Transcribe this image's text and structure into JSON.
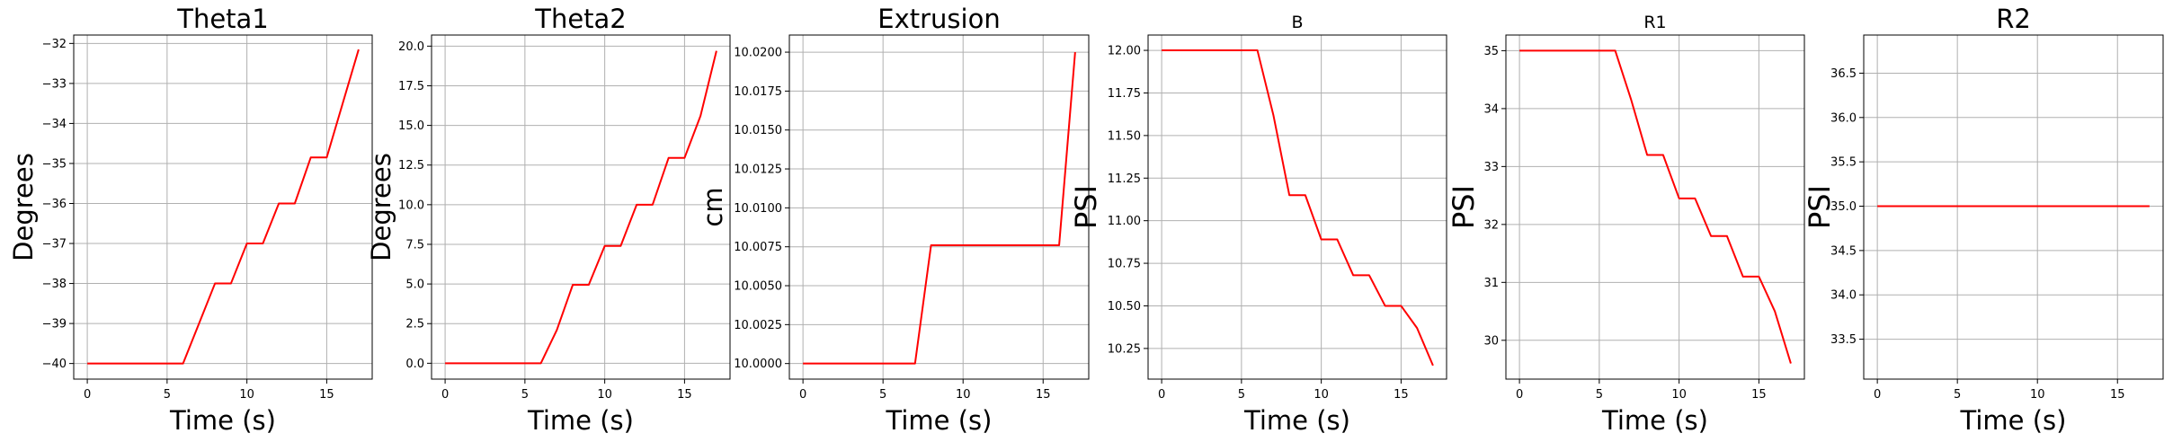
{
  "figure": {
    "background": "#ffffff",
    "line_color": "#ff0000",
    "grid_color": "#b0b0b0",
    "axes_color": "#000000"
  },
  "chart_data": [
    {
      "type": "line",
      "title": "Theta1",
      "xlabel": "Time (s)",
      "ylabel": "Degrees",
      "grid": true,
      "xlim": [
        -0.85,
        17.85
      ],
      "ylim": [
        -40.39,
        -31.79
      ],
      "xticks": [
        0,
        5,
        10,
        15
      ],
      "yticks": [
        -40,
        -39,
        -38,
        -37,
        -36,
        -35,
        -34,
        -33,
        -32
      ],
      "ytick_labels": [
        "−40",
        "−39",
        "−38",
        "−37",
        "−36",
        "−35",
        "−34",
        "−33",
        "−32"
      ],
      "series": [
        {
          "x": [
            0,
            1,
            2,
            3,
            4,
            5,
            6,
            7,
            8,
            9,
            10,
            11,
            12,
            13,
            14,
            15,
            16,
            17
          ],
          "y": [
            -40,
            -40,
            -40,
            -40,
            -40,
            -40,
            -40,
            -39,
            -38,
            -38,
            -37,
            -37,
            -36,
            -36,
            -34.85,
            -34.85,
            -33.5,
            -32.15
          ]
        }
      ]
    },
    {
      "type": "line",
      "title": "Theta2",
      "xlabel": "Time (s)",
      "ylabel": "Degrees",
      "grid": true,
      "xlim": [
        -0.85,
        17.85
      ],
      "ylim": [
        -1.0,
        20.7
      ],
      "xticks": [
        0,
        5,
        10,
        15
      ],
      "yticks": [
        0,
        2.5,
        5,
        7.5,
        10,
        12.5,
        15,
        17.5,
        20
      ],
      "ytick_labels": [
        "0.0",
        "2.5",
        "5.0",
        "7.5",
        "10.0",
        "12.5",
        "15.0",
        "17.5",
        "20.0"
      ],
      "series": [
        {
          "x": [
            0,
            1,
            2,
            3,
            4,
            5,
            6,
            7,
            8,
            9,
            10,
            11,
            12,
            13,
            14,
            15,
            16,
            17
          ],
          "y": [
            0,
            0,
            0,
            0,
            0,
            0,
            0,
            2.1,
            4.95,
            4.95,
            7.4,
            7.4,
            10.0,
            10.0,
            12.95,
            12.95,
            15.6,
            19.7
          ]
        }
      ]
    },
    {
      "type": "line",
      "title": "Extrusion",
      "xlabel": "Time (s)",
      "ylabel": "cm",
      "grid": true,
      "xlim": [
        -0.85,
        17.85
      ],
      "ylim": [
        9.999,
        10.0211
      ],
      "xticks": [
        0,
        5,
        10,
        15
      ],
      "yticks": [
        10.0,
        10.0025,
        10.005,
        10.0075,
        10.01,
        10.0125,
        10.015,
        10.0175,
        10.02
      ],
      "ytick_labels": [
        "10.0000",
        "10.0025",
        "10.0050",
        "10.0075",
        "10.0100",
        "10.0125",
        "10.0150",
        "10.0175",
        "10.0200"
      ],
      "series": [
        {
          "x": [
            0,
            1,
            2,
            3,
            4,
            5,
            6,
            7,
            8,
            9,
            10,
            11,
            12,
            13,
            14,
            15,
            16,
            17
          ],
          "y": [
            10.0,
            10.0,
            10.0,
            10.0,
            10.0,
            10.0,
            10.0,
            10.0,
            10.0076,
            10.0076,
            10.0076,
            10.0076,
            10.0076,
            10.0076,
            10.0076,
            10.0076,
            10.0076,
            10.02
          ]
        }
      ]
    },
    {
      "type": "line",
      "title": "B",
      "xlabel": "Time (s)",
      "ylabel": "PSI",
      "grid": true,
      "xlim": [
        -0.85,
        17.85
      ],
      "ylim": [
        10.07,
        12.09
      ],
      "xticks": [
        0,
        5,
        10,
        15
      ],
      "yticks": [
        10.25,
        10.5,
        10.75,
        11.0,
        11.25,
        11.5,
        11.75,
        12.0
      ],
      "ytick_labels": [
        "10.25",
        "10.50",
        "10.75",
        "11.00",
        "11.25",
        "11.50",
        "11.75",
        "12.00"
      ],
      "series": [
        {
          "x": [
            0,
            1,
            2,
            3,
            4,
            5,
            6,
            7,
            8,
            9,
            10,
            11,
            12,
            13,
            14,
            15,
            16,
            17
          ],
          "y": [
            12.0,
            12.0,
            12.0,
            12.0,
            12.0,
            12.0,
            12.0,
            11.62,
            11.15,
            11.15,
            10.89,
            10.89,
            10.68,
            10.68,
            10.5,
            10.5,
            10.37,
            10.15
          ]
        }
      ]
    },
    {
      "type": "line",
      "title": "R1",
      "xlabel": "Time (s)",
      "ylabel": "PSI",
      "grid": true,
      "xlim": [
        -0.85,
        17.85
      ],
      "ylim": [
        29.33,
        35.27
      ],
      "xticks": [
        0,
        5,
        10,
        15
      ],
      "yticks": [
        30,
        31,
        32,
        33,
        34,
        35
      ],
      "ytick_labels": [
        "30",
        "31",
        "32",
        "33",
        "34",
        "35"
      ],
      "series": [
        {
          "x": [
            0,
            1,
            2,
            3,
            4,
            5,
            6,
            7,
            8,
            9,
            10,
            11,
            12,
            13,
            14,
            15,
            16,
            17
          ],
          "y": [
            35.0,
            35.0,
            35.0,
            35.0,
            35.0,
            35.0,
            35.0,
            34.15,
            33.2,
            33.2,
            32.45,
            32.45,
            31.8,
            31.8,
            31.1,
            31.1,
            30.5,
            29.6
          ]
        }
      ]
    },
    {
      "type": "line",
      "title": "R2",
      "xlabel": "Time (s)",
      "ylabel": "PSI",
      "grid": true,
      "xlim": [
        -0.85,
        17.85
      ],
      "ylim": [
        33.05,
        36.93
      ],
      "xticks": [
        0,
        5,
        10,
        15
      ],
      "yticks": [
        33.5,
        34.0,
        34.5,
        35.0,
        35.5,
        36.0,
        36.5
      ],
      "ytick_labels": [
        "33.5",
        "34.0",
        "34.5",
        "35.0",
        "35.5",
        "36.0",
        "36.5"
      ],
      "series": [
        {
          "x": [
            0,
            1,
            2,
            3,
            4,
            5,
            6,
            7,
            8,
            9,
            10,
            11,
            12,
            13,
            14,
            15,
            16,
            17
          ],
          "y": [
            35.0,
            35.0,
            35.0,
            35.0,
            35.0,
            35.0,
            35.0,
            35.0,
            35.0,
            35.0,
            35.0,
            35.0,
            35.0,
            35.0,
            35.0,
            35.0,
            35.0,
            35.0
          ]
        }
      ]
    }
  ]
}
